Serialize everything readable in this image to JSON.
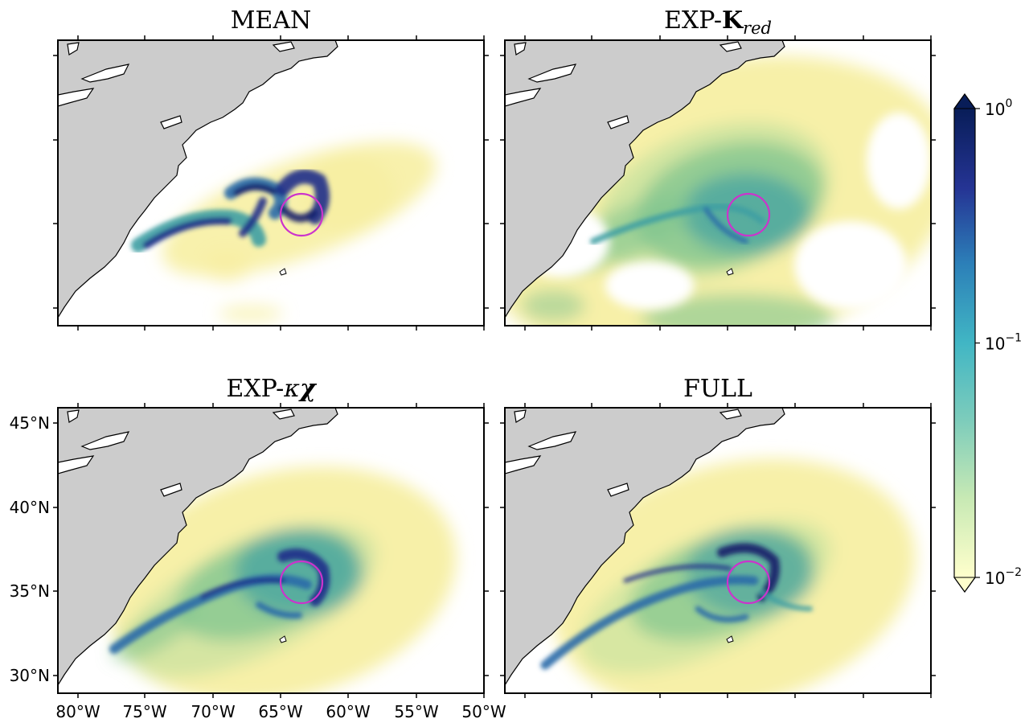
{
  "panels": [
    {
      "id": "mean",
      "title": "MEAN",
      "title_parts": [],
      "field": "mean"
    },
    {
      "id": "exp-kred",
      "title": "",
      "title_parts": [
        "EXP-",
        "K",
        "red"
      ],
      "field": "kred"
    },
    {
      "id": "exp-kappa-chi",
      "title": "",
      "title_parts": [
        "EXP-",
        "κ",
        "χ"
      ],
      "field": "kchi"
    },
    {
      "id": "full",
      "title": "FULL",
      "title_parts": [],
      "field": "full"
    }
  ],
  "lat_ticks": [
    "45°N",
    "40°N",
    "35°N",
    "30°N"
  ],
  "lon_ticks": [
    "80°W",
    "75°W",
    "70°W",
    "65°W",
    "60°W",
    "55°W",
    "50°W"
  ],
  "colorbar": {
    "scale": "log",
    "min": 0.01,
    "max": 1,
    "ticks": [
      {
        "base": "10",
        "exp": "0",
        "value": 1
      },
      {
        "base": "10",
        "exp": "−1",
        "value": 0.1
      },
      {
        "base": "10",
        "exp": "−2",
        "value": 0.01
      }
    ],
    "colormap": [
      "#ffffcc",
      "#c7e9b4",
      "#7fcdbb",
      "#41b6c4",
      "#2c7fb8",
      "#253494",
      "#081d58"
    ]
  },
  "colors": {
    "land": "#cccccc",
    "coastline": "#000000",
    "marker_circle": "#cc33cc"
  }
}
